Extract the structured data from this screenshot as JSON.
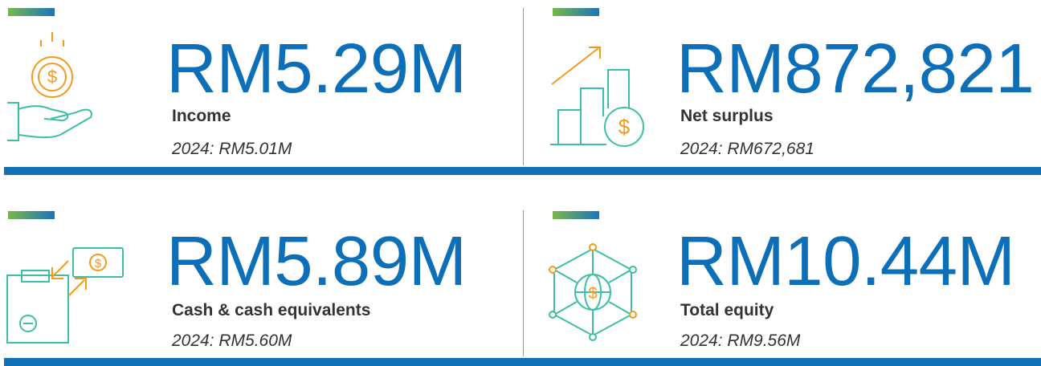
{
  "cards": [
    {
      "value": "RM5.29M",
      "label": "Income",
      "previous": "2024: RM5.01M"
    },
    {
      "value": "RM872,821",
      "label": "Net surplus",
      "previous": "2024: RM672,681"
    },
    {
      "value": "RM5.89M",
      "label": "Cash & cash equivalents",
      "previous": "2024: RM5.60M"
    },
    {
      "value": "RM10.44M",
      "label": "Total equity",
      "previous": "2024: RM9.56M"
    }
  ]
}
